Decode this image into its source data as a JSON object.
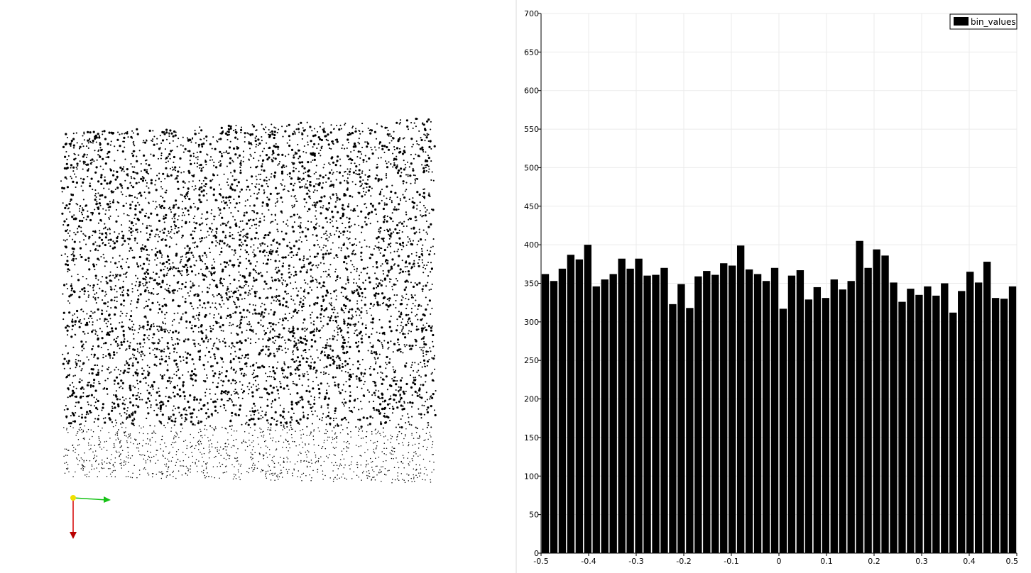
{
  "colors": {
    "point": "#000000",
    "bar": "#000000",
    "grid": "#ebebeb",
    "axis": "#000000",
    "axis_x": "#d40000",
    "axis_y": "#16c216",
    "axis_z": "#f0e000"
  },
  "icons": {
    "orientation_axes": "xyz-orientation-axes-icon"
  },
  "chart_data": {
    "type": "bar",
    "legend": [
      "bin_values"
    ],
    "legend_position": "top-right",
    "grid": true,
    "xlim": [
      -0.5,
      0.5
    ],
    "ylim": [
      0,
      700
    ],
    "x_ticks": [
      -0.5,
      -0.4,
      -0.3,
      -0.2,
      -0.1,
      0,
      0.1,
      0.2,
      0.3,
      0.4,
      0.5
    ],
    "y_ticks": [
      0,
      50,
      100,
      150,
      200,
      250,
      300,
      350,
      400,
      450,
      500,
      550,
      600,
      650,
      700
    ],
    "x_tick_labels": [
      "-0.5",
      "-0.4",
      "-0.3",
      "-0.2",
      "-0.1",
      "0",
      "0.1",
      "0.2",
      "0.3",
      "0.4",
      "0.5"
    ],
    "y_tick_labels": [
      "0",
      "50",
      "100",
      "150",
      "200",
      "250",
      "300",
      "350",
      "400",
      "450",
      "500",
      "550",
      "600",
      "650",
      "700"
    ],
    "series": [
      {
        "name": "bin_values",
        "values": [
          362,
          353,
          369,
          387,
          381,
          400,
          346,
          355,
          362,
          382,
          369,
          382,
          360,
          361,
          370,
          323,
          349,
          318,
          359,
          366,
          361,
          376,
          373,
          399,
          368,
          362,
          353,
          370,
          317,
          360,
          367,
          329,
          345,
          331,
          355,
          342,
          353,
          405,
          370,
          394,
          386,
          351,
          326,
          343,
          335,
          346,
          334,
          350,
          312,
          340,
          365,
          351,
          378,
          331,
          330,
          346
        ]
      }
    ]
  }
}
